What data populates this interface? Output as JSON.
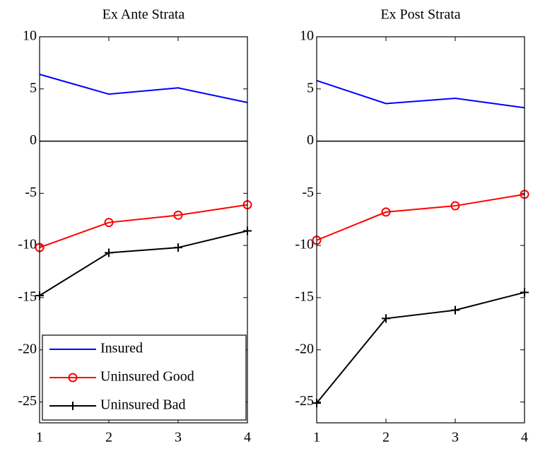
{
  "chart_data": [
    {
      "type": "line",
      "title": "Ex Ante Strata",
      "x": [
        1,
        2,
        3,
        4
      ],
      "xlim": [
        1,
        4
      ],
      "xticks": [
        1,
        2,
        3,
        4
      ],
      "ylim": [
        -27,
        10
      ],
      "yticks": [
        10,
        5,
        0,
        -5,
        -10,
        -15,
        -20,
        -25
      ],
      "legend": "lower left",
      "series": [
        {
          "name": "Insured",
          "color": "#0000ff",
          "marker": "none",
          "values": [
            6.4,
            4.5,
            5.1,
            3.7
          ]
        },
        {
          "name": "Uninsured Good",
          "color": "#ff0000",
          "marker": "o",
          "values": [
            -10.2,
            -7.8,
            -7.1,
            -6.1
          ]
        },
        {
          "name": "Uninsured Bad",
          "color": "#000000",
          "marker": "+",
          "values": [
            -14.8,
            -10.7,
            -10.2,
            -8.6
          ]
        }
      ]
    },
    {
      "type": "line",
      "title": "Ex Post Strata",
      "x": [
        1,
        2,
        3,
        4
      ],
      "xlim": [
        1,
        4
      ],
      "xticks": [
        1,
        2,
        3,
        4
      ],
      "ylim": [
        -27,
        10
      ],
      "yticks": [
        10,
        5,
        0,
        -5,
        -10,
        -15,
        -20,
        -25
      ],
      "series": [
        {
          "name": "Insured",
          "color": "#0000ff",
          "marker": "none",
          "values": [
            5.8,
            3.6,
            4.1,
            3.2
          ]
        },
        {
          "name": "Uninsured Good",
          "color": "#ff0000",
          "marker": "o",
          "values": [
            -9.5,
            -6.8,
            -6.2,
            -5.1
          ]
        },
        {
          "name": "Uninsured Bad",
          "color": "#000000",
          "marker": "+",
          "values": [
            -25.1,
            -17.0,
            -16.2,
            -14.5
          ]
        }
      ]
    }
  ]
}
